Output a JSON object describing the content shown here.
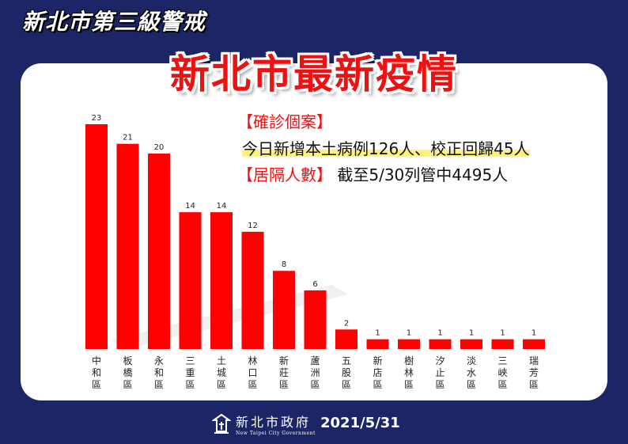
{
  "header": {
    "banner": "新北市第三級警戒",
    "title": "新北市最新疫情"
  },
  "info": {
    "confirmed_label": "【確診個案】",
    "confirmed_text": "今日新增本土病例126人、校正回歸45人",
    "quarantine_label": "【居隔人數】",
    "quarantine_text": "截至5/30列管中4495人"
  },
  "footer": {
    "org_name": "新北市政府",
    "org_name_en": "New Taipei City Government",
    "date": "2021/5/31"
  },
  "colors": {
    "bar": "#ff0000",
    "background": "#1c2566",
    "title": "#ee1111"
  },
  "chart_data": {
    "type": "bar",
    "categories": [
      "中和區",
      "板橋區",
      "永和區",
      "三重區",
      "土城區",
      "林口區",
      "新莊區",
      "蘆洲區",
      "五股區",
      "新店區",
      "樹林區",
      "汐止區",
      "淡水區",
      "三峽區",
      "瑞芳區"
    ],
    "values": [
      23,
      21,
      20,
      14,
      14,
      12,
      8,
      6,
      2,
      1,
      1,
      1,
      1,
      1,
      1
    ],
    "title": "",
    "xlabel": "",
    "ylabel": "",
    "ylim": [
      0,
      23
    ],
    "grid": false,
    "legend": "none"
  }
}
